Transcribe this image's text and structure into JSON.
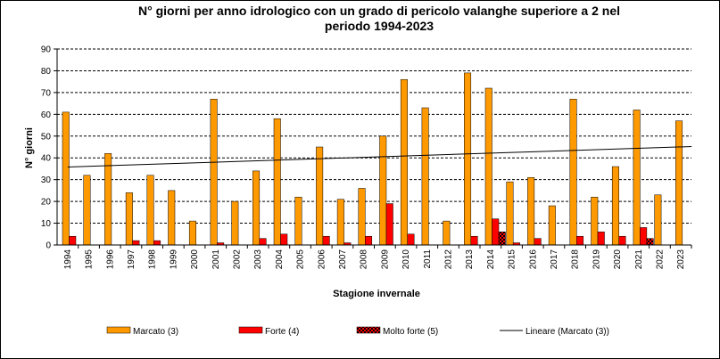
{
  "chart_data": {
    "type": "bar",
    "title_line1": "N° giorni per anno idrologico con un grado di pericolo valanghe superiore a 2 nel",
    "title_line2": "periodo 1994-2023",
    "xlabel": "Stagione invernale",
    "ylabel": "N° giorni",
    "ylim": [
      0,
      90
    ],
    "ytick_step": 10,
    "grid": true,
    "legend_position": "bottom",
    "categories": [
      "1994",
      "1995",
      "1996",
      "1997",
      "1998",
      "1999",
      "2000",
      "2001",
      "2002",
      "2003",
      "2004",
      "2005",
      "2006",
      "2007",
      "2008",
      "2009",
      "2010",
      "2011",
      "2012",
      "2013",
      "2014",
      "2015",
      "2016",
      "2017",
      "2018",
      "2019",
      "2020",
      "2021",
      "2022",
      "2023"
    ],
    "series": [
      {
        "name": "Marcato (3)",
        "color": "#ff9900",
        "pattern": "solid",
        "values": [
          61,
          32,
          42,
          24,
          32,
          25,
          11,
          67,
          20,
          34,
          58,
          22,
          45,
          21,
          26,
          50,
          76,
          63,
          11,
          79,
          72,
          29,
          31,
          18,
          67,
          22,
          36,
          62,
          23,
          57
        ]
      },
      {
        "name": "Forte (4)",
        "color": "#ff0000",
        "pattern": "solid",
        "values": [
          4,
          0,
          0,
          2,
          2,
          0,
          0,
          1,
          0,
          3,
          5,
          0,
          4,
          1,
          4,
          19,
          5,
          0,
          0,
          4,
          12,
          1,
          3,
          0,
          4,
          6,
          4,
          8,
          0,
          0
        ]
      },
      {
        "name": "Molto forte (5)",
        "color": "#cc0000",
        "pattern": "checker",
        "values": [
          0,
          0,
          0,
          0,
          0,
          0,
          0,
          0,
          0,
          0,
          0,
          0,
          0,
          0,
          0,
          0,
          0,
          0,
          0,
          0,
          6,
          0,
          0,
          0,
          0,
          0,
          0,
          3,
          0,
          0
        ]
      }
    ],
    "trendline": {
      "name": "Lineare (Marcato (3))",
      "color": "#000000",
      "start": 35.8,
      "end": 45.2
    }
  }
}
